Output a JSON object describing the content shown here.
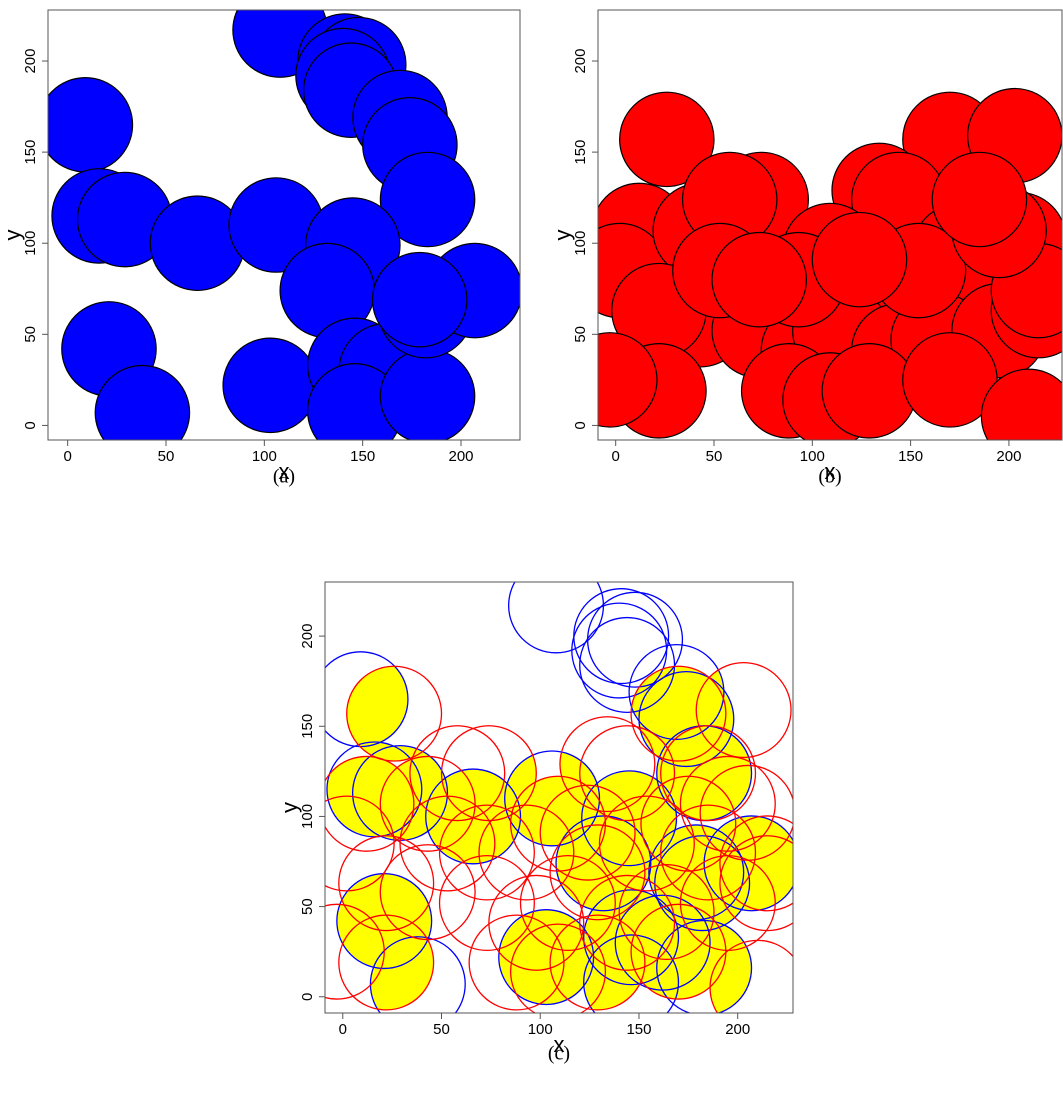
{
  "chart_data": [
    {
      "type": "scatter",
      "caption": "(a)",
      "x_label": "x",
      "y_label": "y",
      "x": [
        9,
        16,
        29,
        66,
        106,
        21,
        38,
        108,
        141,
        148,
        140,
        144,
        169,
        174,
        183,
        145,
        132,
        103,
        146,
        162,
        146,
        183,
        182,
        207,
        179
      ],
      "y": [
        165,
        115,
        113,
        100,
        110,
        42,
        7,
        217,
        200,
        198,
        192,
        184,
        169,
        154,
        124,
        99,
        74,
        22,
        33,
        30,
        8,
        16,
        63,
        74,
        69
      ],
      "radius": 24,
      "color": "#0000ff",
      "edge_color": "#000000",
      "xlim": [
        -10,
        230
      ],
      "ylim": [
        -8,
        228
      ],
      "xticks": [
        0,
        50,
        100,
        150,
        200
      ],
      "yticks": [
        0,
        50,
        100,
        150,
        200
      ]
    },
    {
      "type": "scatter",
      "caption": "(b)",
      "x_label": "x",
      "y_label": "y",
      "x": [
        26,
        170,
        203,
        74,
        134,
        144,
        205,
        12,
        2,
        43,
        58,
        109,
        175,
        185,
        129,
        43,
        22,
        73,
        98,
        114,
        144,
        164,
        195,
        215,
        22,
        -3,
        88,
        109,
        129,
        170,
        210,
        53,
        93,
        154,
        215,
        73,
        195,
        185,
        124
      ],
      "y": [
        157,
        157,
        159,
        124,
        129,
        124,
        102,
        107,
        85,
        107,
        124,
        96,
        96,
        80,
        69,
        58,
        63,
        52,
        41,
        52,
        41,
        47,
        52,
        63,
        19,
        25,
        19,
        14,
        19,
        25,
        5,
        85,
        80,
        85,
        74,
        80,
        107,
        124,
        91
      ],
      "radius": 24,
      "color": "#ff0000",
      "edge_color": "#000000",
      "xlim": [
        -9,
        227
      ],
      "ylim": [
        -8,
        228
      ],
      "xticks": [
        0,
        50,
        100,
        150,
        200
      ],
      "yticks": [
        0,
        50,
        100,
        150,
        200
      ]
    },
    {
      "type": "overlay",
      "caption": "(c)",
      "x_label": "x",
      "y_label": "y",
      "radius": 24,
      "overlap_color": "#ffff00",
      "series": [
        {
          "color": "#0000ff",
          "x": [
            9,
            16,
            29,
            66,
            106,
            21,
            38,
            108,
            141,
            148,
            140,
            144,
            169,
            174,
            183,
            145,
            132,
            103,
            146,
            162,
            146,
            183,
            182,
            207,
            179
          ],
          "y": [
            165,
            115,
            113,
            100,
            110,
            42,
            7,
            217,
            200,
            198,
            192,
            184,
            169,
            154,
            124,
            99,
            74,
            22,
            33,
            30,
            8,
            16,
            63,
            74,
            69
          ]
        },
        {
          "color": "#ff0000",
          "x": [
            26,
            170,
            203,
            74,
            134,
            144,
            205,
            12,
            2,
            43,
            58,
            109,
            175,
            185,
            129,
            43,
            22,
            73,
            98,
            114,
            144,
            164,
            195,
            215,
            22,
            -3,
            88,
            109,
            129,
            170,
            210,
            53,
            93,
            154,
            215,
            73,
            195,
            185,
            124
          ],
          "y": [
            157,
            157,
            159,
            124,
            129,
            124,
            102,
            107,
            85,
            107,
            124,
            96,
            96,
            80,
            69,
            58,
            63,
            52,
            41,
            52,
            41,
            47,
            52,
            63,
            19,
            25,
            19,
            14,
            19,
            25,
            5,
            85,
            80,
            85,
            74,
            80,
            107,
            124,
            91
          ]
        }
      ],
      "xlim": [
        -9,
        228
      ],
      "ylim": [
        -9,
        230
      ],
      "xticks": [
        0,
        50,
        100,
        150,
        200
      ],
      "yticks": [
        0,
        50,
        100,
        150,
        200
      ]
    }
  ]
}
